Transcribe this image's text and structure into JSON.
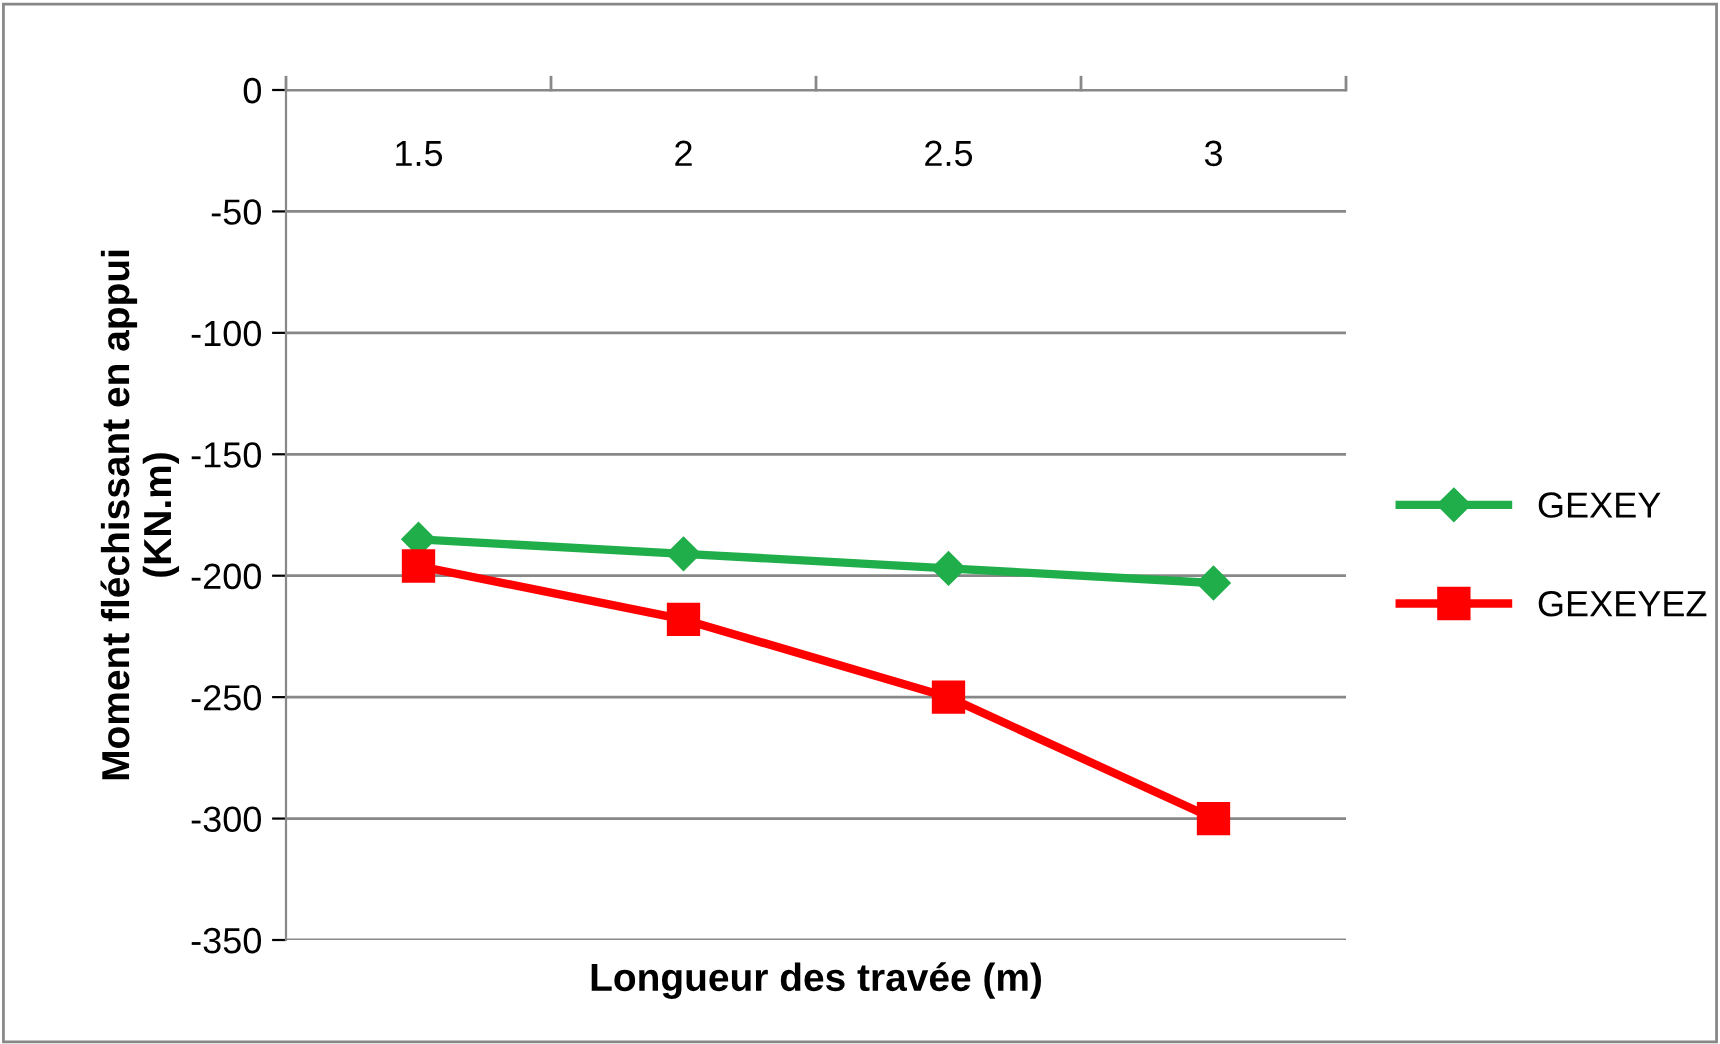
{
  "chart_data": {
    "type": "line",
    "xlabel": "Longueur des travée (m)",
    "ylabel": "Moment fléchissant en appui\n(KN.m)",
    "categories": [
      "1.5",
      "2",
      "2.5",
      "3"
    ],
    "series": [
      {
        "name": "GEXEY",
        "color": "#1fae4a",
        "values": [
          -185,
          -191,
          -197,
          -203
        ],
        "marker": "diamond"
      },
      {
        "name": "GEXEYEZ",
        "color": "#ff0000",
        "values": [
          -196,
          -218,
          -250,
          -300
        ],
        "marker": "square"
      }
    ],
    "ylim": [
      -350,
      0
    ],
    "yticks": [
      0,
      -50,
      -100,
      -150,
      -200,
      -250,
      -300,
      -350
    ],
    "grid": "y",
    "legend": "right",
    "line_style": "solid"
  }
}
